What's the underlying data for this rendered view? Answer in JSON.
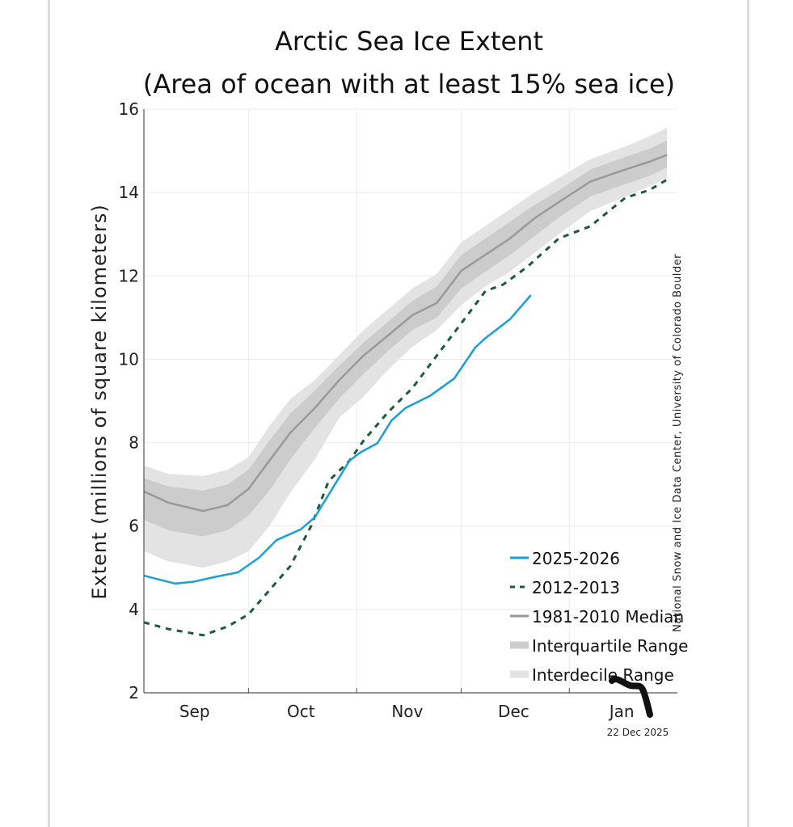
{
  "chart_data": {
    "type": "line",
    "title": "Arctic Sea Ice Extent",
    "subtitle": "(Area of ocean with at least 15% sea ice)",
    "xlabel": "",
    "ylabel": "Extent (millions of square kilometers)",
    "ylim": [
      2,
      16
    ],
    "yticks": [
      2,
      4,
      6,
      8,
      10,
      12,
      14,
      16
    ],
    "x_unit": "days since Sep 1",
    "xlim": [
      0,
      153
    ],
    "month_boundaries": [
      0,
      30,
      61,
      91,
      122,
      153
    ],
    "xtick_labels": [
      "Sep",
      "Oct",
      "Nov",
      "Dec",
      "Jan"
    ],
    "grid": true,
    "legend_position": "bottom-right",
    "credit": "National Snow and Ice Data Center, University of Colorado Boulder",
    "date_stamp": "22 Dec 2025",
    "series": [
      {
        "name": "2025-2026",
        "style": "solid",
        "color": "#1a9fd6",
        "x": [
          0,
          9,
          14,
          21,
          27,
          33,
          38,
          45,
          49,
          54,
          59,
          62,
          67,
          71,
          75,
          82,
          89,
          95,
          98,
          105,
          111
        ],
        "y": [
          4.81,
          4.62,
          4.66,
          4.79,
          4.89,
          5.24,
          5.66,
          5.92,
          6.21,
          6.89,
          7.57,
          7.76,
          7.99,
          8.53,
          8.83,
          9.12,
          9.54,
          10.28,
          10.51,
          10.96,
          11.54
        ]
      },
      {
        "name": "2012-2013",
        "style": "dashed",
        "color": "#1e5a3a",
        "x": [
          0,
          7,
          17,
          24,
          30,
          36,
          42,
          48,
          53,
          59,
          63,
          70,
          77,
          84,
          91,
          98,
          103,
          110,
          119,
          128,
          138,
          145,
          150
        ],
        "y": [
          3.69,
          3.53,
          3.38,
          3.59,
          3.88,
          4.46,
          5.04,
          6.01,
          7.08,
          7.57,
          8.05,
          8.73,
          9.31,
          10.09,
          10.86,
          11.64,
          11.79,
          12.22,
          12.9,
          13.19,
          13.87,
          14.06,
          14.31
        ]
      },
      {
        "name": "1981-2010 Median",
        "style": "solid",
        "color": "#999999",
        "x": [
          0,
          7,
          17,
          24,
          30,
          36,
          42,
          49,
          56,
          63,
          70,
          77,
          84,
          91,
          98,
          105,
          112,
          119,
          128,
          138,
          145,
          150
        ],
        "y": [
          6.83,
          6.56,
          6.36,
          6.5,
          6.89,
          7.57,
          8.24,
          8.83,
          9.5,
          10.09,
          10.57,
          11.06,
          11.35,
          12.12,
          12.51,
          12.9,
          13.38,
          13.77,
          14.26,
          14.55,
          14.74,
          14.9
        ]
      }
    ],
    "bands": [
      {
        "name": "Interdecile Range",
        "color": "#e3e3e3",
        "x": [
          0,
          7,
          17,
          24,
          30,
          36,
          42,
          49,
          56,
          63,
          70,
          77,
          84,
          91,
          98,
          105,
          112,
          119,
          128,
          138,
          145,
          150
        ],
        "upper": [
          7.45,
          7.25,
          7.2,
          7.35,
          7.65,
          8.4,
          9.05,
          9.5,
          10.1,
          10.7,
          11.2,
          11.7,
          12.05,
          12.8,
          13.2,
          13.6,
          14.0,
          14.35,
          14.8,
          15.1,
          15.35,
          15.55
        ],
        "lower": [
          5.4,
          5.15,
          5.0,
          5.15,
          5.4,
          6.0,
          6.8,
          7.6,
          8.6,
          9.1,
          9.75,
          10.3,
          10.7,
          11.3,
          11.75,
          12.1,
          12.55,
          13.0,
          13.55,
          13.9,
          14.15,
          14.35
        ]
      },
      {
        "name": "Interquartile Range",
        "color": "#cccccc",
        "x": [
          0,
          7,
          17,
          24,
          30,
          36,
          42,
          49,
          56,
          63,
          70,
          77,
          84,
          91,
          98,
          105,
          112,
          119,
          128,
          138,
          145,
          150
        ],
        "upper": [
          7.15,
          6.95,
          6.85,
          7.0,
          7.35,
          8.05,
          8.7,
          9.25,
          9.85,
          10.4,
          10.9,
          11.4,
          11.75,
          12.5,
          12.9,
          13.3,
          13.7,
          14.05,
          14.55,
          14.85,
          15.05,
          15.25
        ],
        "lower": [
          6.15,
          5.9,
          5.75,
          5.9,
          6.25,
          6.85,
          7.6,
          8.35,
          9.05,
          9.65,
          10.2,
          10.7,
          11.0,
          11.7,
          12.1,
          12.5,
          12.95,
          13.4,
          13.9,
          14.2,
          14.4,
          14.6
        ]
      }
    ]
  }
}
